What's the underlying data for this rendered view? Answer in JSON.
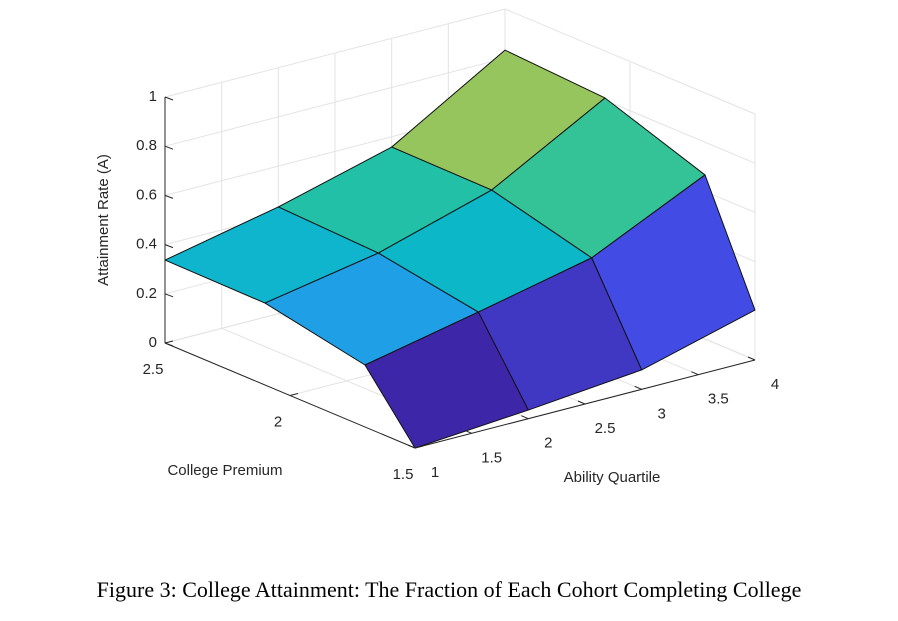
{
  "chart_data": {
    "type": "surface",
    "caption": "Figure 3: College Attainment: The Fraction of Each Cohort Completing College",
    "xlabel": "Ability Quartile",
    "ylabel": "College Premium",
    "zlabel": "Attainment Rate (A)",
    "x": [
      1,
      2,
      3,
      4
    ],
    "y": [
      1.5,
      1.7,
      2.1,
      2.5
    ],
    "z": [
      [
        0,
        0.035,
        0.079,
        0.203
      ],
      [
        0.252,
        0.348,
        0.449,
        0.667
      ],
      [
        0.333,
        0.417,
        0.554,
        0.809
      ],
      [
        0.337,
        0.434,
        0.558,
        0.833
      ]
    ],
    "xlim": [
      1,
      4
    ],
    "ylim": [
      1.5,
      2.5
    ],
    "zlim": [
      0,
      1
    ],
    "xticks": [
      1,
      1.5,
      2,
      2.5,
      3,
      3.5,
      4
    ],
    "yticks": [
      1.5,
      2,
      2.5
    ],
    "zticks": [
      0,
      0.2,
      0.4,
      0.6,
      0.8,
      1
    ],
    "grid": true,
    "colormap": [
      "#3e26a8",
      "#4353f0",
      "#2f85f5",
      "#17a9e0",
      "#08bdc0",
      "#3cc48f",
      "#97c45c",
      "#e0b845",
      "#fbd82b",
      "#f9fb15"
    ]
  }
}
